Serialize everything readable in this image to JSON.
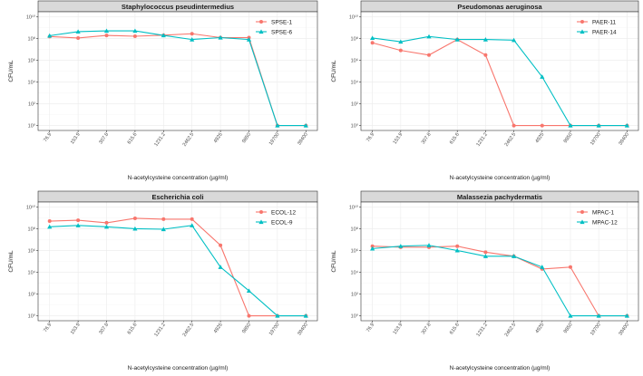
{
  "chart_data": [
    {
      "type": "line",
      "title": "Staphylococcus pseudintermedius",
      "xlabel": "N-acetylcysteine concentration (µg/ml)",
      "ylabel": "CFU/mL",
      "y_scale": "log10",
      "ylim": [
        1,
        10000000000
      ],
      "y_ticks": [
        "10⁰",
        "10²",
        "10⁴",
        "10⁶",
        "10⁸",
        "10¹⁰"
      ],
      "categories": [
        "76.9",
        "153.9",
        "307.8",
        "615.6",
        "1231.2",
        "2462.5",
        "4925",
        "9850",
        "19700",
        "39400"
      ],
      "legend": "top-right",
      "grid": true,
      "series": [
        {
          "name": "SPSE-1",
          "color": "#F8766D",
          "marker": "circle",
          "values": [
            150000000,
            110000000,
            190000000,
            160000000,
            200000000,
            270000000,
            120000000,
            120000000,
            1,
            1
          ]
        },
        {
          "name": "SPSE-6",
          "color": "#00BFC4",
          "marker": "triangle",
          "values": [
            180000000,
            420000000,
            500000000,
            500000000,
            190000000,
            80000000,
            120000000,
            80000000,
            1,
            1
          ]
        }
      ]
    },
    {
      "type": "line",
      "title": "Pseudomonas aeruginosa",
      "xlabel": "N-acetylcysteine concentration (µg/ml)",
      "ylabel": "CFU/mL",
      "y_scale": "log10",
      "ylim": [
        1,
        10000000000
      ],
      "y_ticks": [
        "10⁰",
        "10²",
        "10⁴",
        "10⁶",
        "10⁸",
        "10¹⁰"
      ],
      "categories": [
        "76.9",
        "153.9",
        "307.8",
        "615.6",
        "1231.2",
        "2462.5",
        "4925",
        "9850",
        "19700",
        "39400"
      ],
      "legend": "top-right",
      "grid": true,
      "series": [
        {
          "name": "PAER-11",
          "color": "#F8766D",
          "marker": "circle",
          "values": [
            40000000,
            8000000,
            3000000,
            80000000,
            3000000,
            1,
            1,
            1,
            1,
            1
          ]
        },
        {
          "name": "PAER-14",
          "color": "#00BFC4",
          "marker": "triangle",
          "values": [
            110000000,
            50000000,
            150000000,
            80000000,
            80000000,
            70000000,
            30000,
            1,
            1,
            1
          ]
        }
      ]
    },
    {
      "type": "line",
      "title": "Escherichia coli",
      "xlabel": "N-acetylcysteine concentration (µg/ml)",
      "ylabel": "CFU/mL",
      "y_scale": "log10",
      "ylim": [
        1,
        10000000000
      ],
      "y_ticks": [
        "10⁰",
        "10²",
        "10⁴",
        "10⁶",
        "10⁸",
        "10¹⁰"
      ],
      "categories": [
        "76.9",
        "153.9",
        "307.8",
        "615.6",
        "1231.2",
        "2462.5",
        "4925",
        "9850",
        "19700",
        "39400"
      ],
      "legend": "top-right",
      "grid": true,
      "series": [
        {
          "name": "ECOL-12",
          "color": "#F8766D",
          "marker": "circle",
          "values": [
            500000000,
            600000000,
            350000000,
            900000000,
            750000000,
            750000000,
            3000000,
            1,
            1,
            1
          ]
        },
        {
          "name": "ECOL-9",
          "color": "#00BFC4",
          "marker": "triangle",
          "values": [
            150000000,
            200000000,
            150000000,
            100000000,
            90000000,
            200000000,
            30000,
            200,
            1,
            1
          ]
        }
      ]
    },
    {
      "type": "line",
      "title": "Malassezia pachydermatis",
      "xlabel": "N-acetylcysteine concentration (µg/ml)",
      "ylabel": "CFU/mL",
      "y_scale": "log10",
      "ylim": [
        1,
        10000000000
      ],
      "y_ticks": [
        "10⁰",
        "10²",
        "10⁴",
        "10⁶",
        "10⁸",
        "10¹⁰"
      ],
      "categories": [
        "76.9",
        "153.9",
        "307.8",
        "615.6",
        "1231.2",
        "2462.5",
        "4925",
        "9850",
        "19700",
        "39400"
      ],
      "legend": "top-right",
      "grid": true,
      "series": [
        {
          "name": "MPAC-1",
          "color": "#F8766D",
          "marker": "circle",
          "values": [
            2500000,
            2000000,
            2000000,
            2500000,
            700000,
            300000,
            20000,
            30000,
            1,
            1
          ]
        },
        {
          "name": "MPAC-12",
          "color": "#00BFC4",
          "marker": "triangle",
          "values": [
            1500000,
            2500000,
            3000000,
            1000000,
            300000,
            300000,
            30000,
            1,
            1,
            1
          ]
        }
      ]
    }
  ]
}
